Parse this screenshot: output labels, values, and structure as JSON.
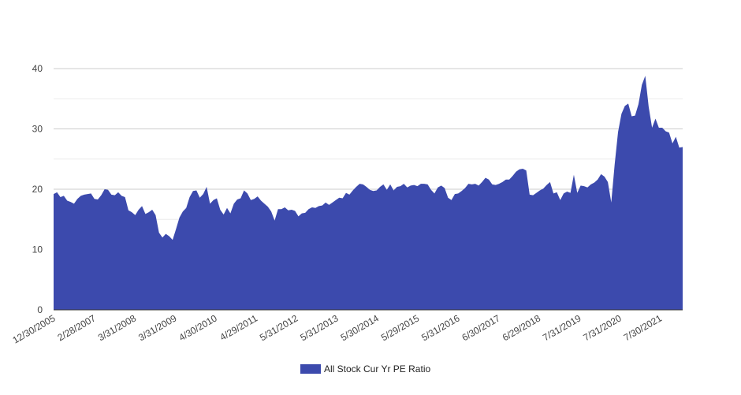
{
  "chart_data": {
    "type": "area",
    "title": "",
    "xlabel": "",
    "ylabel": "",
    "ylim": [
      0,
      40
    ],
    "y_ticks": [
      0,
      10,
      20,
      30,
      40
    ],
    "grid": true,
    "legend_position": "bottom",
    "colors": {
      "area": "#3c4aad",
      "grid": "#cccccc",
      "axis": "#333333"
    },
    "x_tick_labels": [
      "12/30/2005",
      "2/28/2007",
      "3/31/2008",
      "3/31/2009",
      "4/30/2010",
      "4/29/2011",
      "5/31/2012",
      "5/31/2013",
      "5/30/2014",
      "5/29/2015",
      "5/31/2016",
      "6/30/2017",
      "6/29/2018",
      "7/31/2019",
      "7/31/2020",
      "7/30/2021"
    ],
    "series": [
      {
        "name": "All Stock Cur Yr PE Ratio",
        "values": [
          19.2,
          19.5,
          18.7,
          18.9,
          18.1,
          17.9,
          17.6,
          18.4,
          18.9,
          19.1,
          19.2,
          19.3,
          18.4,
          18.3,
          19.0,
          20.0,
          19.9,
          19.1,
          19.0,
          19.5,
          18.9,
          18.7,
          16.5,
          16.2,
          15.7,
          16.6,
          17.2,
          15.9,
          16.2,
          16.6,
          15.7,
          12.8,
          12.0,
          12.6,
          12.2,
          11.6,
          13.4,
          15.3,
          16.3,
          16.9,
          18.7,
          19.7,
          19.8,
          18.6,
          19.2,
          20.4,
          17.6,
          18.2,
          18.5,
          16.6,
          15.8,
          16.9,
          16.0,
          17.6,
          18.3,
          18.5,
          19.8,
          19.3,
          18.2,
          18.4,
          18.8,
          18.1,
          17.6,
          17.1,
          16.3,
          14.8,
          16.7,
          16.7,
          17.0,
          16.5,
          16.6,
          16.4,
          15.5,
          16.0,
          16.1,
          16.7,
          17.0,
          16.9,
          17.2,
          17.3,
          17.8,
          17.4,
          17.8,
          18.2,
          18.6,
          18.5,
          19.4,
          19.1,
          19.8,
          20.4,
          20.9,
          20.8,
          20.4,
          19.9,
          19.7,
          19.8,
          20.4,
          20.8,
          19.9,
          20.8,
          19.8,
          20.4,
          20.5,
          20.9,
          20.3,
          20.6,
          20.7,
          20.5,
          20.9,
          20.9,
          20.8,
          19.9,
          19.3,
          20.3,
          20.6,
          20.2,
          18.6,
          18.2,
          19.2,
          19.3,
          19.7,
          20.2,
          20.9,
          20.8,
          20.9,
          20.6,
          21.2,
          21.9,
          21.6,
          20.8,
          20.7,
          20.9,
          21.2,
          21.6,
          21.6,
          22.2,
          22.9,
          23.3,
          23.4,
          23.1,
          19.1,
          19.0,
          19.4,
          19.8,
          20.1,
          20.7,
          21.2,
          19.3,
          19.5,
          18.2,
          19.3,
          19.6,
          19.4,
          22.4,
          19.4,
          20.6,
          20.5,
          20.3,
          20.8,
          21.1,
          21.6,
          22.5,
          22.1,
          21.2,
          17.8,
          24.1,
          29.5,
          32.5,
          33.8,
          34.2,
          32.1,
          32.2,
          34.1,
          37.3,
          38.8,
          33.7,
          30.2,
          31.7,
          30.2,
          30.2,
          29.6,
          29.4,
          27.6,
          28.7,
          26.9,
          27.0
        ]
      }
    ]
  }
}
